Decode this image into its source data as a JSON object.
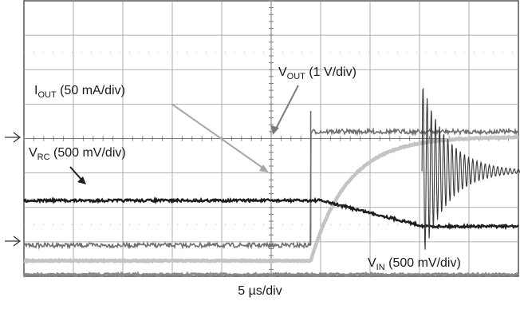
{
  "chart_data": {
    "type": "line",
    "title": "",
    "grid": true,
    "divisions": {
      "x": 10,
      "y": 8
    },
    "x_scale": "5 µs/div",
    "annotations": {
      "vout": {
        "main": "V",
        "sub": "OUT",
        "rest": " (1 V/div)"
      },
      "iout": {
        "main": "I",
        "sub": "OUT",
        "rest": " (50 mA/div)"
      },
      "vrc": {
        "main": "V",
        "sub": "RC",
        "rest": " (500 mV/div)"
      },
      "vin": {
        "main": "V",
        "sub": "IN",
        "rest": " (500 mV/div)"
      }
    },
    "series": [
      {
        "name": "VOUT",
        "color": "#707070",
        "trace": "step",
        "x": [
          0,
          5.8,
          5.82,
          10
        ],
        "y": [
          0.9,
          0.9,
          4.2,
          4.2
        ],
        "noise_div": 0.06
      },
      {
        "name": "IOUT",
        "color": "#c4c4c4",
        "trace": "exp-rise",
        "x_start": 5.8,
        "y_low": 0.45,
        "y_high": 4.05,
        "tau_div": 0.75
      },
      {
        "name": "VRC",
        "color": "#1e1e1e",
        "trace": "ramp-with-ringing",
        "x": [
          0,
          6.0,
          10.0
        ],
        "y": [
          2.2,
          2.2,
          1.45
        ],
        "ringing_at_div": 8.05
      },
      {
        "name": "VIN",
        "color": "#8a8a8a",
        "trace": "flat",
        "y": 0.05
      }
    ]
  },
  "timebase_label": "5 µs/div"
}
